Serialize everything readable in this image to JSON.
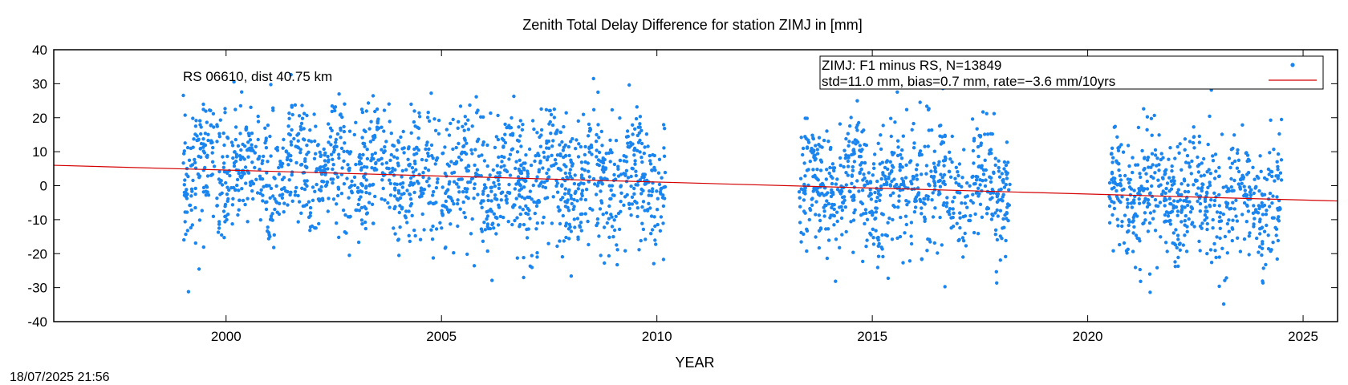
{
  "chart_data": {
    "type": "scatter",
    "title": "Zenith Total Delay Difference for station ZIMJ in [mm]",
    "xlabel": "YEAR",
    "ylabel": "",
    "xlim": [
      1996,
      2025.8
    ],
    "ylim": [
      -40,
      40
    ],
    "xticks": [
      2000,
      2005,
      2010,
      2015,
      2020,
      2025
    ],
    "yticks": [
      -40,
      -30,
      -20,
      -10,
      0,
      10,
      20,
      30,
      40
    ],
    "grid": false,
    "annotation": "RS 06610, dist 40.75 km",
    "legend": {
      "position": "top-right",
      "line1": "ZIMJ: F1 minus RS, N=13849",
      "line2": "std=11.0 mm, bias=0.7 mm, rate=−3.6 mm/10yrs"
    },
    "series": [
      {
        "kind": "points",
        "color": "#1a85ee",
        "n": 13849,
        "std": 11.0,
        "bias": 0.7,
        "coverage_years": [
          [
            1999.0,
            2010.2
          ],
          [
            2013.3,
            2018.2
          ],
          [
            2020.5,
            2024.5
          ]
        ]
      },
      {
        "kind": "trend-line",
        "color": "#d40000",
        "x": [
          1996,
          2025.8
        ],
        "y": [
          6.0,
          -4.5
        ]
      }
    ]
  },
  "footer": {
    "timestamp": "18/07/2025 21:56"
  }
}
